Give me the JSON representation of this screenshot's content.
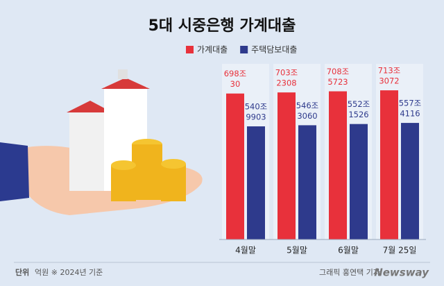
{
  "chart_data": {
    "type": "bar",
    "title": "5대 시중은행 가계대출",
    "categories": [
      "4월말",
      "5월말",
      "6월말",
      "7월 25일"
    ],
    "series": [
      {
        "name": "가계대출",
        "color": "#e8313b",
        "values": [
          6980030,
          7032308,
          7085723,
          7133072
        ],
        "value_labels": [
          [
            "698조",
            "30"
          ],
          [
            "703조",
            "2308"
          ],
          [
            "708조",
            "5723"
          ],
          [
            "713조",
            "3072"
          ]
        ]
      },
      {
        "name": "주택담보대출",
        "color": "#2e3a8c",
        "values": [
          5409903,
          5463060,
          5521526,
          5574116
        ],
        "value_labels": [
          [
            "540조",
            "9903"
          ],
          [
            "546조",
            "3060"
          ],
          [
            "552조",
            "1526"
          ],
          [
            "557조",
            "4116"
          ]
        ]
      }
    ],
    "ylim": [
      0,
      8000000
    ],
    "unit_label": "단위",
    "unit_note": "억원 ※ 2024년 기준",
    "credit": "그래픽 홍연택 기자",
    "brand": "Newsway"
  }
}
